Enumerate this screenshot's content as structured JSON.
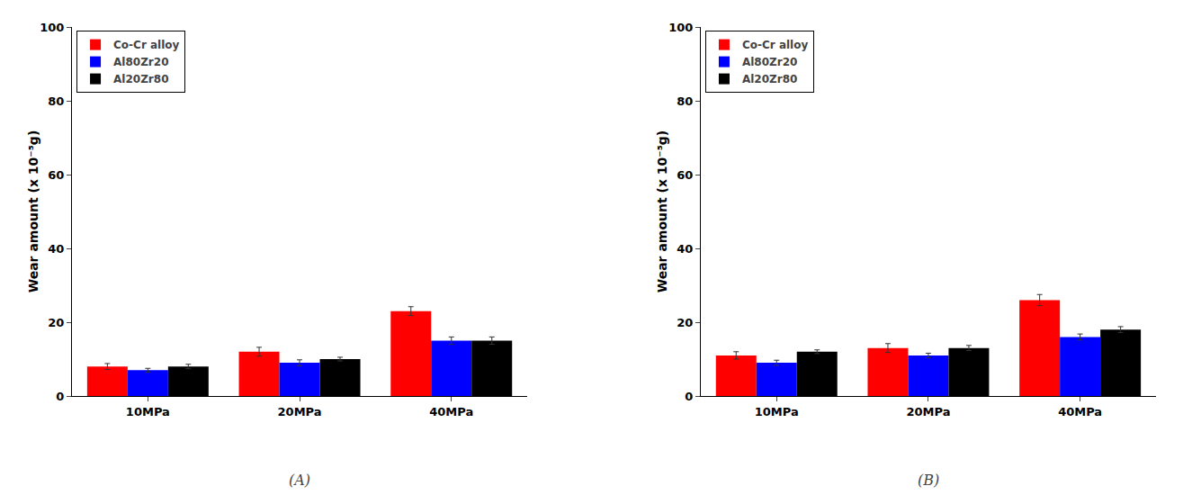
{
  "chart_data": [
    {
      "type": "bar",
      "categories": [
        "10MPa",
        "20MPa",
        "40MPa"
      ],
      "series": [
        {
          "name": "Co-Cr alloy",
          "color": "#ff0000",
          "values": [
            8.0,
            12.0,
            23.0
          ],
          "errors": [
            0.8,
            1.2,
            1.2
          ]
        },
        {
          "name": "Al80Zr20",
          "color": "#0000ff",
          "values": [
            7.0,
            9.0,
            15.0
          ],
          "errors": [
            0.5,
            0.8,
            1.0
          ]
        },
        {
          "name": "Al20Zr80",
          "color": "#000000",
          "values": [
            8.0,
            10.0,
            15.0
          ],
          "errors": [
            0.6,
            0.5,
            1.0
          ]
        }
      ],
      "ylabel": "Wear amount (x 10⁻⁵g)",
      "ylim": [
        0,
        100
      ],
      "yticks": [
        0,
        20,
        40,
        60,
        80,
        100
      ],
      "grid": false,
      "legend": "upper left",
      "annotations": [
        "(A)"
      ]
    },
    {
      "type": "bar",
      "categories": [
        "10MPa",
        "20MPa",
        "40MPa"
      ],
      "series": [
        {
          "name": "Co-Cr alloy",
          "color": "#ff0000",
          "values": [
            11.0,
            13.0,
            26.0
          ],
          "errors": [
            1.0,
            1.2,
            1.5
          ]
        },
        {
          "name": "Al80Zr20",
          "color": "#0000ff",
          "values": [
            9.0,
            11.0,
            16.0
          ],
          "errors": [
            0.7,
            0.6,
            0.8
          ]
        },
        {
          "name": "Al20Zr80",
          "color": "#000000",
          "values": [
            12.0,
            13.0,
            18.0
          ],
          "errors": [
            0.5,
            0.7,
            0.8
          ]
        }
      ],
      "ylabel": "Wear amount (x 10⁻⁵g)",
      "ylim": [
        0,
        100
      ],
      "yticks": [
        0,
        20,
        40,
        60,
        80,
        100
      ],
      "grid": false,
      "legend": "upper left",
      "annotations": [
        "(B)"
      ]
    }
  ]
}
